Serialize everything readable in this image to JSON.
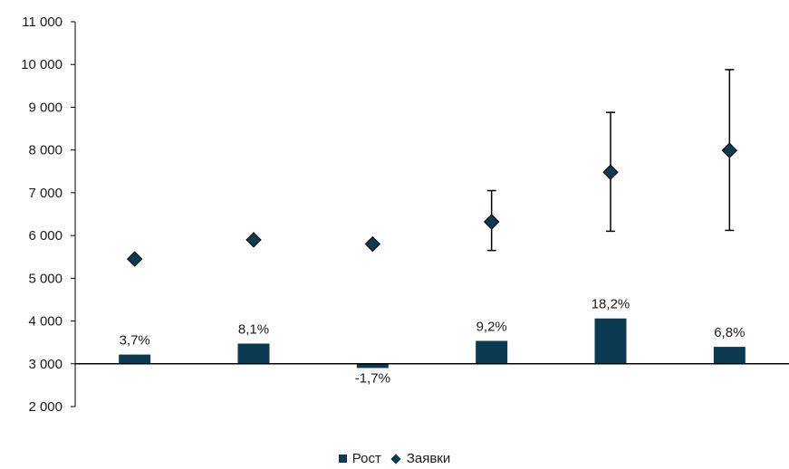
{
  "chart_data": {
    "type": "bar",
    "categories": [
      "",
      "",
      "",
      "",
      "",
      ""
    ],
    "ylim": [
      2000,
      11000
    ],
    "yticks": [
      2000,
      3000,
      4000,
      5000,
      6000,
      7000,
      8000,
      9000,
      10000,
      11000
    ],
    "ytick_labels": [
      "2 000",
      "3 000",
      "4 000",
      "5 000",
      "6 000",
      "7 000",
      "8 000",
      "9 000",
      "10 000",
      "11 000"
    ],
    "baseline": 3000,
    "grid": false,
    "legend_position": "bottom",
    "colors": {
      "bar": "#0b3a52",
      "marker": "#0b3a52",
      "axis": "#000000"
    },
    "series": [
      {
        "name": "Рост",
        "kind": "bar",
        "values": [
          3.7,
          8.1,
          -1.7,
          9.2,
          18.2,
          6.8
        ],
        "labels": [
          "3,7%",
          "8,1%",
          "-1,7%",
          "9,2%",
          "18,2%",
          "6,8%"
        ]
      },
      {
        "name": "Заявки",
        "kind": "scatter",
        "marker": "diamond",
        "values": [
          5450,
          5900,
          5800,
          6320,
          7480,
          7990
        ],
        "error_low": [
          null,
          null,
          null,
          5650,
          6100,
          6120
        ],
        "error_high": [
          null,
          null,
          null,
          7050,
          8880,
          9880
        ]
      }
    ]
  }
}
